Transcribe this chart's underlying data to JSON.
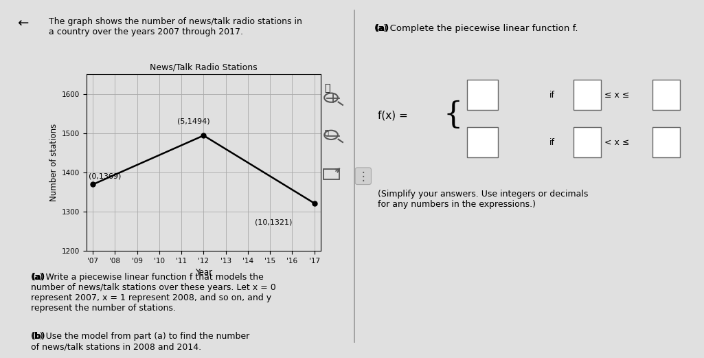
{
  "bg_color": "#e0e0e0",
  "chart_title": "News/Talk Radio Stations",
  "xlabel": "Year",
  "ylabel": "Number of stations",
  "x_data": [
    0,
    5,
    10
  ],
  "y_data": [
    1369,
    1494,
    1321
  ],
  "x_tick_labels": [
    "'07",
    "'08",
    "'09",
    "'10",
    "'11",
    "'12",
    "'13",
    "'14",
    "'15",
    "'16",
    "'17"
  ],
  "x_tick_positions": [
    0,
    1,
    2,
    3,
    4,
    5,
    6,
    7,
    8,
    9,
    10
  ],
  "ylim": [
    1200,
    1650
  ],
  "yticks": [
    1200,
    1300,
    1400,
    1500,
    1600
  ],
  "line_color": "#000000",
  "point_color": "#000000",
  "grid_color": "#aaaaaa",
  "header_text": "The graph shows the number of news/talk radio stations in\na country over the years 2007 through 2017.",
  "body_a_bold": "(a)",
  "body_a_normal": " Write a piecewise linear function f that models the\nnumber of news/talk stations over these years. Let x = 0\nrepresent 2007, x = 1 represent 2008, and so on, and y\nrepresent the number of stations.",
  "body_b_bold": "(b)",
  "body_b_normal": " Use the model from part (a) to find the number\nof news/talk stations in 2008 and 2014.",
  "right_header": "(a) Complete the piecewise linear function f.",
  "simplify_note": "(Simplify your answers. Use integers or decimals\nfor any numbers in the expressions.)",
  "divider_x": 0.503
}
